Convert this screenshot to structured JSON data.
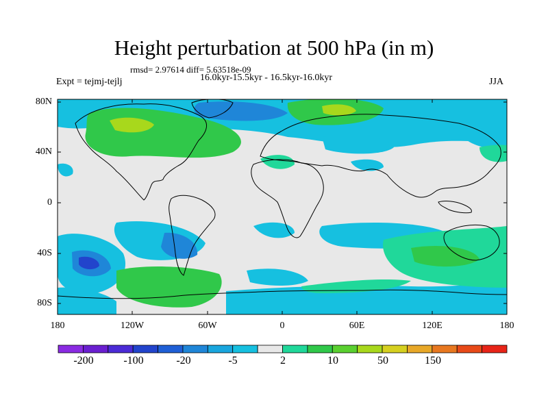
{
  "title": "Height perturbation at 500 hPa (in m)",
  "stats_line": "rmsd= 2.97614 diff= 5.63518e-09",
  "period_line": "16.0kyr-15.5kyr - 16.5kyr-16.0kyr",
  "experiment_label": "Expt = tejmj-tejlj",
  "season_label": "JJA",
  "lat_ticks": [
    "80N",
    "40N",
    "0",
    "40S",
    "80S"
  ],
  "lon_ticks": [
    "180",
    "120W",
    "60W",
    "0",
    "60E",
    "120E",
    "180"
  ],
  "colorbar": {
    "labels": [
      "-200",
      "-100",
      "-20",
      "-5",
      "2",
      "10",
      "50",
      "150"
    ],
    "colors": [
      "#8a2be2",
      "#6a1fd0",
      "#4b2bd6",
      "#2244cc",
      "#1f5fd6",
      "#1f86d8",
      "#19a6de",
      "#16c0e0",
      "#e8e8e8",
      "#20d89a",
      "#30c84a",
      "#5ad030",
      "#a8d81c",
      "#d6d020",
      "#e8a828",
      "#e87820",
      "#e84a18",
      "#e82418"
    ]
  },
  "colors": {
    "background_field": "#e8e8e8",
    "cyan": "#16c0e0",
    "light_blue": "#19a6de",
    "blue": "#1f86d8",
    "teal_green": "#20d89a",
    "green": "#30c84a",
    "yellow_green": "#a8d81c"
  }
}
